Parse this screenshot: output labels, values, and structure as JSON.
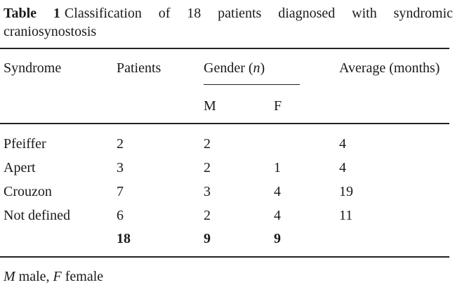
{
  "caption": {
    "label": "Table 1",
    "text": "Classification of 18 patients diagnosed with syndromic craniosynostosis"
  },
  "table": {
    "headers": {
      "syndrome": "Syndrome",
      "patients": "Patients",
      "gender_prefix": "Gender (",
      "gender_n": "n",
      "gender_suffix": ")",
      "average": "Average (months)",
      "male": "M",
      "female": "F"
    },
    "rows": [
      {
        "syndrome": "Pfeiffer",
        "patients": "2",
        "m": "2",
        "f": "",
        "average": "4"
      },
      {
        "syndrome": "Apert",
        "patients": "3",
        "m": "2",
        "f": "1",
        "average": "4"
      },
      {
        "syndrome": "Crouzon",
        "patients": "7",
        "m": "3",
        "f": "4",
        "average": "19"
      },
      {
        "syndrome": "Not defined",
        "patients": "6",
        "m": "2",
        "f": "4",
        "average": "11"
      }
    ],
    "totals": {
      "patients": "18",
      "m": "9",
      "f": "9"
    }
  },
  "footnote": {
    "m_abbr": "M",
    "m_text": "male,",
    "f_abbr": "F",
    "f_text": "female"
  }
}
